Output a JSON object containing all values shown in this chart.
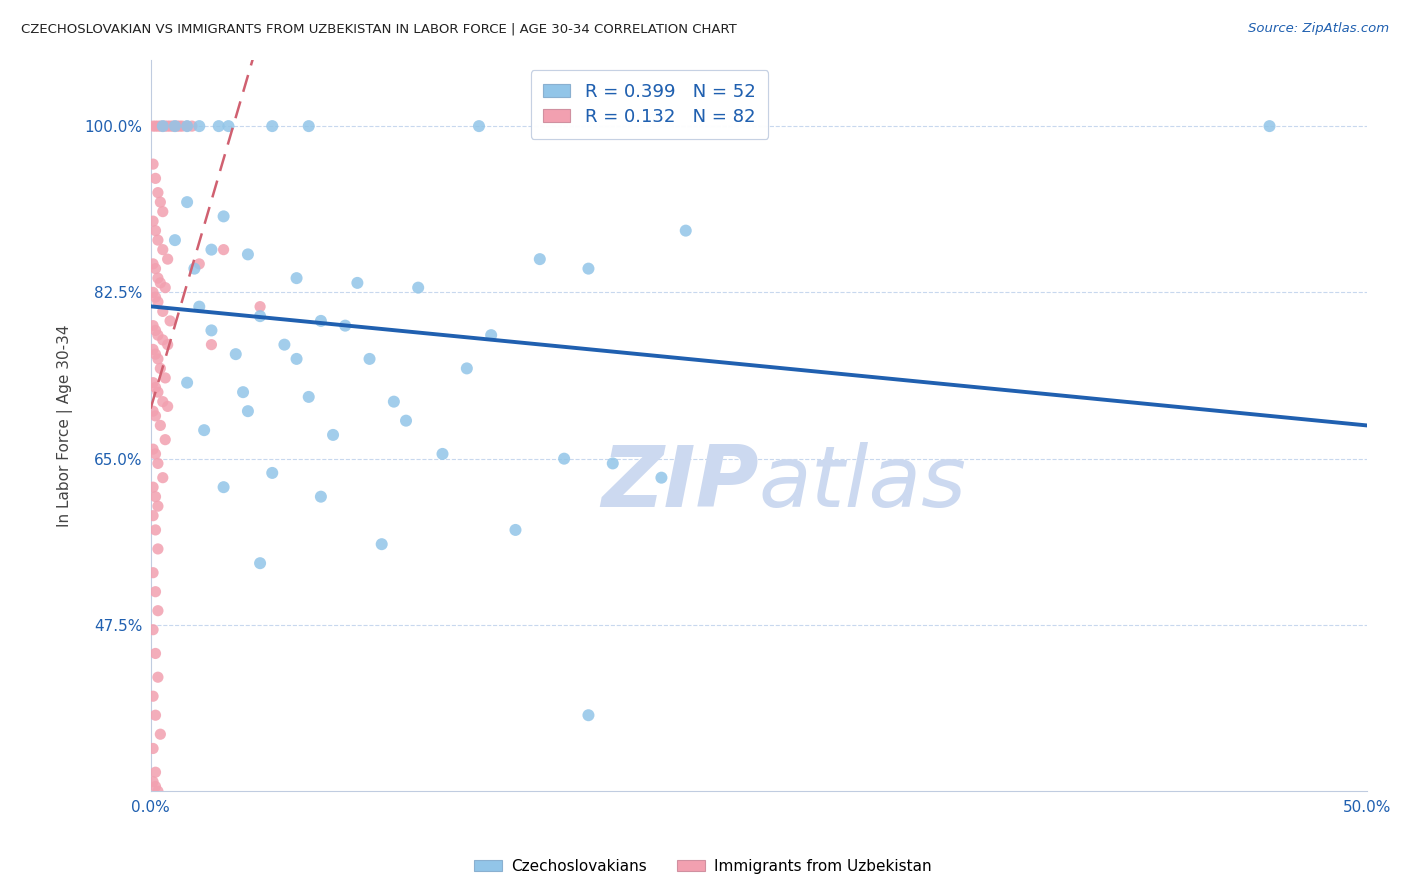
{
  "title": "CZECHOSLOVAKIAN VS IMMIGRANTS FROM UZBEKISTAN IN LABOR FORCE | AGE 30-34 CORRELATION CHART",
  "source": "Source: ZipAtlas.com",
  "ylabel": "In Labor Force | Age 30-34",
  "xlim": [
    0.0,
    50.0
  ],
  "ylim": [
    30.0,
    107.0
  ],
  "yticks": [
    47.5,
    65.0,
    82.5,
    100.0
  ],
  "ytick_labels": [
    "47.5%",
    "65.0%",
    "82.5%",
    "100.0%"
  ],
  "xticks": [
    0.0,
    10.0,
    20.0,
    30.0,
    40.0,
    50.0
  ],
  "xtick_labels": [
    "0.0%",
    "",
    "",
    "",
    "",
    "50.0%"
  ],
  "blue_R": 0.399,
  "blue_N": 52,
  "pink_R": 0.132,
  "pink_N": 82,
  "blue_color": "#92c5e8",
  "pink_color": "#f2a0b0",
  "trend_blue": "#2060b0",
  "trend_pink": "#d06070",
  "watermark_color": "#ccd9f0",
  "blue_scatter_x": [
    0.5,
    1.0,
    1.5,
    2.0,
    2.8,
    3.2,
    5.0,
    6.5,
    13.5,
    46.0,
    1.5,
    3.0,
    1.0,
    2.5,
    4.0,
    1.8,
    6.0,
    8.5,
    11.0,
    16.0,
    2.0,
    4.5,
    7.0,
    2.5,
    5.5,
    3.5,
    9.0,
    13.0,
    18.0,
    22.0,
    1.5,
    3.8,
    6.5,
    4.0,
    10.5,
    14.0,
    2.2,
    7.5,
    12.0,
    19.0,
    5.0,
    8.0,
    6.0,
    10.0,
    21.0,
    3.0,
    7.0,
    15.0,
    9.5,
    17.0,
    18.0,
    4.5
  ],
  "blue_scatter_y": [
    100.0,
    100.0,
    100.0,
    100.0,
    100.0,
    100.0,
    100.0,
    100.0,
    100.0,
    100.0,
    92.0,
    90.5,
    88.0,
    87.0,
    86.5,
    85.0,
    84.0,
    83.5,
    83.0,
    86.0,
    81.0,
    80.0,
    79.5,
    78.5,
    77.0,
    76.0,
    75.5,
    74.5,
    85.0,
    89.0,
    73.0,
    72.0,
    71.5,
    70.0,
    69.0,
    78.0,
    68.0,
    67.5,
    65.5,
    64.5,
    63.5,
    79.0,
    75.5,
    71.0,
    63.0,
    62.0,
    61.0,
    57.5,
    56.0,
    65.0,
    38.0,
    54.0
  ],
  "pink_scatter_x": [
    0.1,
    0.2,
    0.3,
    0.4,
    0.5,
    0.6,
    0.7,
    0.8,
    0.9,
    1.0,
    1.1,
    1.2,
    1.3,
    1.5,
    1.7,
    0.1,
    0.2,
    0.3,
    0.4,
    0.5,
    0.1,
    0.2,
    0.3,
    0.5,
    0.7,
    0.1,
    0.2,
    0.3,
    0.4,
    0.6,
    0.1,
    0.2,
    0.3,
    0.5,
    0.8,
    0.1,
    0.2,
    0.3,
    0.5,
    0.7,
    0.1,
    0.2,
    0.3,
    0.4,
    0.6,
    0.1,
    0.2,
    0.3,
    0.5,
    0.7,
    0.1,
    0.2,
    0.4,
    0.6,
    0.1,
    0.2,
    0.3,
    0.5,
    0.1,
    0.2,
    0.3,
    0.1,
    0.2,
    0.3,
    0.1,
    0.2,
    0.3,
    0.1,
    0.2,
    0.3,
    0.1,
    0.2,
    0.4,
    0.1,
    0.2,
    3.0,
    2.5,
    4.5,
    2.0,
    0.1,
    0.2,
    0.3
  ],
  "pink_scatter_y": [
    100.0,
    100.0,
    100.0,
    100.0,
    100.0,
    100.0,
    100.0,
    100.0,
    100.0,
    100.0,
    100.0,
    100.0,
    100.0,
    100.0,
    100.0,
    96.0,
    94.5,
    93.0,
    92.0,
    91.0,
    90.0,
    89.0,
    88.0,
    87.0,
    86.0,
    85.5,
    85.0,
    84.0,
    83.5,
    83.0,
    82.5,
    82.0,
    81.5,
    80.5,
    79.5,
    79.0,
    78.5,
    78.0,
    77.5,
    77.0,
    76.5,
    76.0,
    75.5,
    74.5,
    73.5,
    73.0,
    72.5,
    72.0,
    71.0,
    70.5,
    70.0,
    69.5,
    68.5,
    67.0,
    66.0,
    65.5,
    64.5,
    63.0,
    62.0,
    61.0,
    60.0,
    59.0,
    57.5,
    55.5,
    53.0,
    51.0,
    49.0,
    47.0,
    44.5,
    42.0,
    40.0,
    38.0,
    36.0,
    34.5,
    32.0,
    87.0,
    77.0,
    81.0,
    85.5,
    31.0,
    30.5,
    30.0
  ]
}
